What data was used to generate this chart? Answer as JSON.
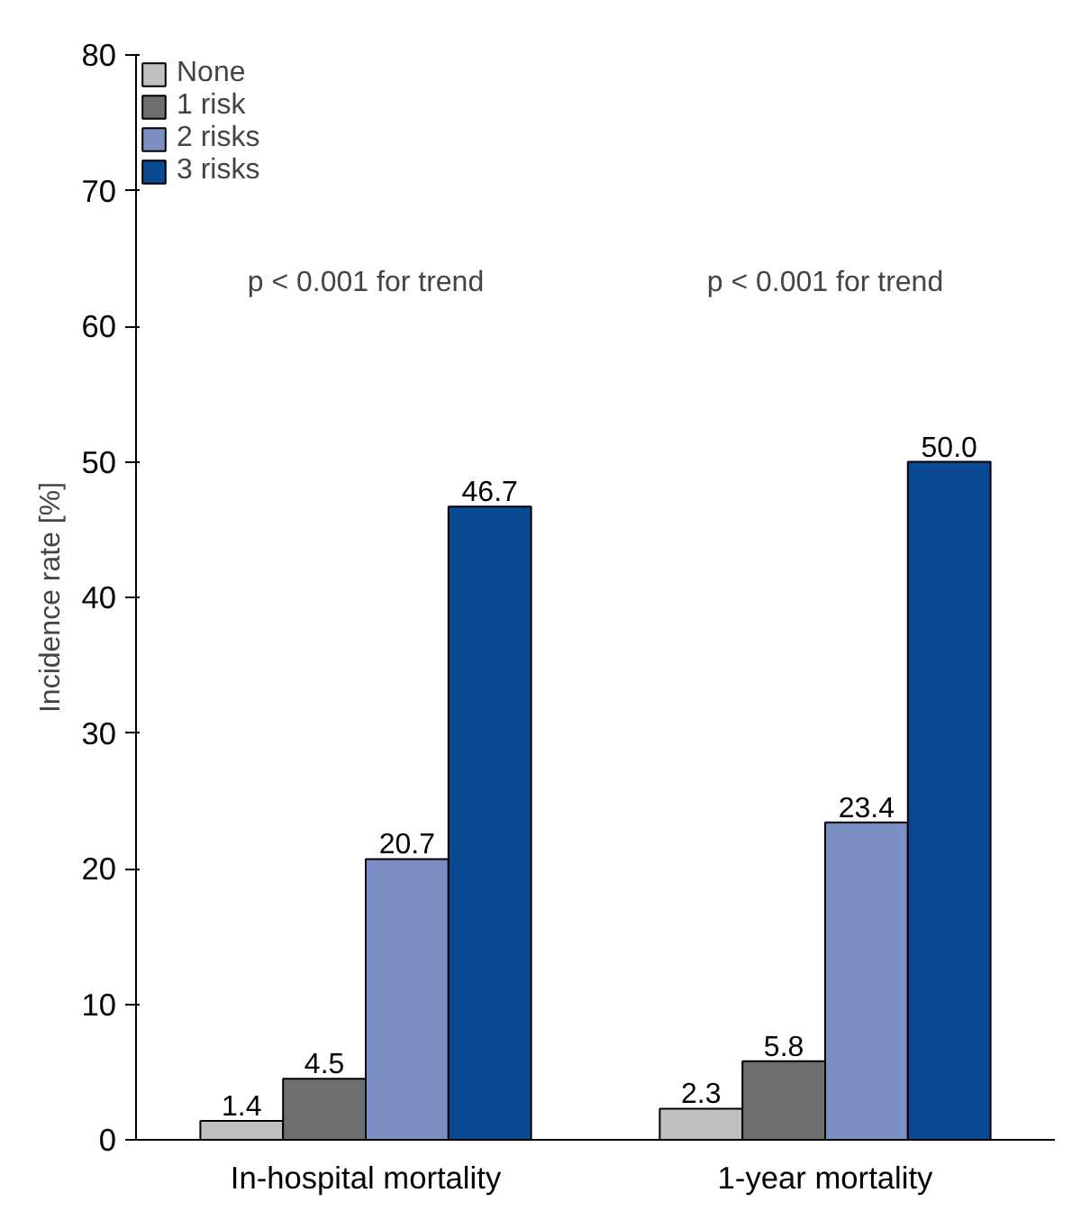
{
  "chart_data": {
    "type": "bar",
    "ylabel": "Incidence rate [%]",
    "categories": [
      "In-hospital mortality",
      "1-year mortality"
    ],
    "series": [
      {
        "name": "None",
        "color": "#c0c0c0",
        "values": [
          1.4,
          2.3
        ],
        "value_labels": [
          "1.4",
          "2.3"
        ]
      },
      {
        "name": "1 risk",
        "color": "#6d6e70",
        "values": [
          4.5,
          5.8
        ],
        "value_labels": [
          "4.5",
          "5.8"
        ]
      },
      {
        "name": "2 risks",
        "color": "#7b8fc4",
        "values": [
          20.7,
          23.4
        ],
        "value_labels": [
          "20.7",
          "23.4"
        ]
      },
      {
        "name": "3 risks",
        "color": "#0a4a93",
        "values": [
          46.7,
          50.0
        ],
        "value_labels": [
          "46.7",
          "50.0"
        ]
      }
    ],
    "ylim": [
      0,
      80
    ],
    "yticks": [
      0,
      10,
      20,
      30,
      40,
      50,
      60,
      70,
      80
    ],
    "grid": false,
    "legend": "top left",
    "annotations": [
      "p < 0.001 for trend",
      "p < 0.001 for trend"
    ]
  }
}
